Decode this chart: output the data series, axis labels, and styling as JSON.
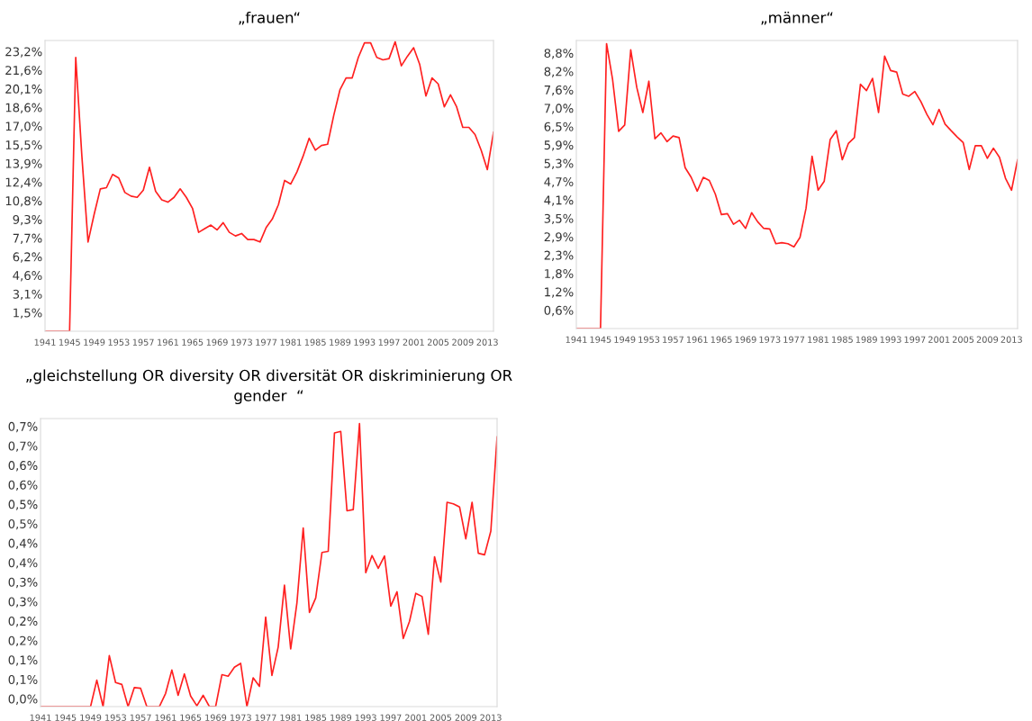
{
  "chart_data": [
    {
      "type": "line",
      "title": "„frauen“",
      "x": [
        1941,
        1942,
        1943,
        1944,
        1945,
        1946,
        1947,
        1948,
        1949,
        1950,
        1951,
        1952,
        1953,
        1954,
        1955,
        1956,
        1957,
        1958,
        1959,
        1960,
        1961,
        1962,
        1963,
        1964,
        1965,
        1966,
        1967,
        1968,
        1969,
        1970,
        1971,
        1972,
        1973,
        1974,
        1975,
        1976,
        1977,
        1978,
        1979,
        1980,
        1981,
        1982,
        1983,
        1984,
        1985,
        1986,
        1987,
        1988,
        1989,
        1990,
        1991,
        1992,
        1993,
        1994,
        1995,
        1996,
        1997,
        1998,
        1999,
        2000,
        2001,
        2002,
        2003,
        2004,
        2005,
        2006,
        2007,
        2008,
        2009,
        2010,
        2011,
        2012,
        2013,
        2014
      ],
      "series": [
        {
          "color": "#ff2020",
          "values": [
            0,
            0,
            0,
            0,
            0,
            22.7,
            14.5,
            7.4,
            9.7,
            11.8,
            11.9,
            13.0,
            12.7,
            11.5,
            11.2,
            11.1,
            11.7,
            13.6,
            11.6,
            10.9,
            10.7,
            11.1,
            11.8,
            11.1,
            10.2,
            8.2,
            8.5,
            8.8,
            8.4,
            9.0,
            8.2,
            7.9,
            8.1,
            7.6,
            7.6,
            7.4,
            8.6,
            9.3,
            10.5,
            12.5,
            12.2,
            13.2,
            14.5,
            16.0,
            15.0,
            15.4,
            15.5,
            17.9,
            20.0,
            21.0,
            21.0,
            22.7,
            23.9,
            23.9,
            22.7,
            22.5,
            22.6,
            24.0,
            22.0,
            22.8,
            23.5,
            22.1,
            19.5,
            21.0,
            20.5,
            18.6,
            19.6,
            18.6,
            16.9,
            16.9,
            16.3,
            15.0,
            13.4,
            16.5
          ]
        }
      ],
      "xlim": [
        1941,
        2014
      ],
      "xticks": [
        1941,
        1945,
        1949,
        1953,
        1957,
        1961,
        1965,
        1969,
        1973,
        1977,
        1981,
        1985,
        1989,
        1993,
        1997,
        2001,
        2005,
        2009,
        2013
      ],
      "ylim": [
        0,
        24.1
      ],
      "yticks": [
        {
          "value": 1.546,
          "label": "1,5%"
        },
        {
          "value": 3.092,
          "label": "3,1%"
        },
        {
          "value": 4.638,
          "label": "4,6%"
        },
        {
          "value": 6.184,
          "label": "6,2%"
        },
        {
          "value": 7.73,
          "label": "7,7%"
        },
        {
          "value": 9.276,
          "label": "9,3%"
        },
        {
          "value": 10.822,
          "label": "10,8%"
        },
        {
          "value": 12.368,
          "label": "12,4%"
        },
        {
          "value": 13.914,
          "label": "13,9%"
        },
        {
          "value": 15.46,
          "label": "15,5%"
        },
        {
          "value": 17.006,
          "label": "17,0%"
        },
        {
          "value": 18.552,
          "label": "18,6%"
        },
        {
          "value": 20.098,
          "label": "20,1%"
        },
        {
          "value": 21.644,
          "label": "21,6%"
        },
        {
          "value": 23.19,
          "label": "23,2%"
        }
      ]
    },
    {
      "type": "line",
      "title": "„männer“",
      "x": [
        1941,
        1942,
        1943,
        1944,
        1945,
        1946,
        1947,
        1948,
        1949,
        1950,
        1951,
        1952,
        1953,
        1954,
        1955,
        1956,
        1957,
        1958,
        1959,
        1960,
        1961,
        1962,
        1963,
        1964,
        1965,
        1966,
        1967,
        1968,
        1969,
        1970,
        1971,
        1972,
        1973,
        1974,
        1975,
        1976,
        1977,
        1978,
        1979,
        1980,
        1981,
        1982,
        1983,
        1984,
        1985,
        1986,
        1987,
        1988,
        1989,
        1990,
        1991,
        1992,
        1993,
        1994,
        1995,
        1996,
        1997,
        1998,
        1999,
        2000,
        2001,
        2002,
        2003,
        2004,
        2005,
        2006,
        2007,
        2008,
        2009,
        2010,
        2011,
        2012,
        2013,
        2014
      ],
      "series": [
        {
          "color": "#ff2020",
          "values": [
            0,
            0,
            0,
            0,
            0,
            9.1,
            7.95,
            6.3,
            6.5,
            8.9,
            7.7,
            6.9,
            7.9,
            6.06,
            6.25,
            5.97,
            6.15,
            6.1,
            5.14,
            4.83,
            4.39,
            4.83,
            4.73,
            4.29,
            3.64,
            3.67,
            3.33,
            3.46,
            3.2,
            3.7,
            3.41,
            3.2,
            3.18,
            2.71,
            2.74,
            2.71,
            2.61,
            2.91,
            3.84,
            5.5,
            4.42,
            4.7,
            6.04,
            6.32,
            5.39,
            5.91,
            6.1,
            7.8,
            7.6,
            7.99,
            6.9,
            8.7,
            8.24,
            8.19,
            7.49,
            7.42,
            7.57,
            7.25,
            6.84,
            6.51,
            7.0,
            6.53,
            6.32,
            6.12,
            5.94,
            5.08,
            5.84,
            5.84,
            5.44,
            5.76,
            5.47,
            4.8,
            4.42,
            5.39
          ]
        }
      ],
      "xlim": [
        1941,
        2014
      ],
      "xticks": [
        1941,
        1945,
        1949,
        1953,
        1957,
        1961,
        1965,
        1969,
        1973,
        1977,
        1981,
        1985,
        1989,
        1993,
        1997,
        2001,
        2005,
        2009,
        2013
      ],
      "ylim": [
        0,
        9.2
      ],
      "yticks": [
        {
          "value": 0.587,
          "label": "0,6%"
        },
        {
          "value": 1.173,
          "label": "1,2%"
        },
        {
          "value": 1.76,
          "label": "1,8%"
        },
        {
          "value": 2.347,
          "label": "2,3%"
        },
        {
          "value": 2.933,
          "label": "2,9%"
        },
        {
          "value": 3.52,
          "label": "3,5%"
        },
        {
          "value": 4.107,
          "label": "4,1%"
        },
        {
          "value": 4.693,
          "label": "4,7%"
        },
        {
          "value": 5.28,
          "label": "5,3%"
        },
        {
          "value": 5.867,
          "label": "5,9%"
        },
        {
          "value": 6.453,
          "label": "6,5%"
        },
        {
          "value": 7.04,
          "label": "7,0%"
        },
        {
          "value": 7.627,
          "label": "7,6%"
        },
        {
          "value": 8.213,
          "label": "8,2%"
        },
        {
          "value": 8.8,
          "label": "8,8%"
        }
      ]
    },
    {
      "type": "line",
      "title": "„gleichstellung OR diversity OR diversität OR diskriminierung OR\ngender  “",
      "x": [
        1941,
        1942,
        1943,
        1944,
        1945,
        1946,
        1947,
        1948,
        1949,
        1950,
        1951,
        1952,
        1953,
        1954,
        1955,
        1956,
        1957,
        1958,
        1959,
        1960,
        1961,
        1962,
        1963,
        1964,
        1965,
        1966,
        1967,
        1968,
        1969,
        1970,
        1971,
        1972,
        1973,
        1974,
        1975,
        1976,
        1977,
        1978,
        1979,
        1980,
        1981,
        1982,
        1983,
        1984,
        1985,
        1986,
        1987,
        1988,
        1989,
        1990,
        1991,
        1992,
        1993,
        1994,
        1995,
        1996,
        1997,
        1998,
        1999,
        2000,
        2001,
        2002,
        2003,
        2004,
        2005,
        2006,
        2007,
        2008,
        2009,
        2010,
        2011,
        2012,
        2013,
        2014
      ],
      "series": [
        {
          "color": "#ff2020",
          "values": [
            0,
            0,
            0,
            0,
            0,
            0,
            0,
            0,
            0,
            0.068,
            0,
            0.131,
            0.062,
            0.057,
            0,
            0.049,
            0.047,
            0,
            0,
            0,
            0.034,
            0.094,
            0.029,
            0.084,
            0.027,
            0.002,
            0.029,
            0,
            0,
            0.082,
            0.078,
            0.101,
            0.111,
            0,
            0.074,
            0.052,
            0.23,
            0.08,
            0.153,
            0.312,
            0.148,
            0.267,
            0.459,
            0.242,
            0.279,
            0.396,
            0.399,
            0.703,
            0.707,
            0.503,
            0.506,
            0.727,
            0.344,
            0.388,
            0.355,
            0.387,
            0.258,
            0.295,
            0.175,
            0.219,
            0.291,
            0.283,
            0.186,
            0.385,
            0.32,
            0.525,
            0.521,
            0.513,
            0.431,
            0.525,
            0.394,
            0.39,
            0.451,
            0.693
          ]
        }
      ],
      "xlim": [
        1941,
        2014
      ],
      "xticks": [
        1941,
        1945,
        1949,
        1953,
        1957,
        1961,
        1965,
        1969,
        1973,
        1977,
        1981,
        1985,
        1989,
        1993,
        1997,
        2001,
        2005,
        2009,
        2013
      ],
      "ylim": [
        0,
        0.74
      ],
      "yticks": [
        {
          "value": 0.02,
          "label": "0,0%"
        },
        {
          "value": 0.07,
          "label": "0,1%"
        },
        {
          "value": 0.12,
          "label": "0,1%"
        },
        {
          "value": 0.17,
          "label": "0,2%"
        },
        {
          "value": 0.22,
          "label": "0,2%"
        },
        {
          "value": 0.27,
          "label": "0,3%"
        },
        {
          "value": 0.32,
          "label": "0,3%"
        },
        {
          "value": 0.37,
          "label": "0,4%"
        },
        {
          "value": 0.42,
          "label": "0,4%"
        },
        {
          "value": 0.47,
          "label": "0,5%"
        },
        {
          "value": 0.52,
          "label": "0,5%"
        },
        {
          "value": 0.57,
          "label": "0,6%"
        },
        {
          "value": 0.62,
          "label": "0,6%"
        },
        {
          "value": 0.67,
          "label": "0,7%"
        },
        {
          "value": 0.72,
          "label": "0,7%"
        }
      ]
    }
  ]
}
